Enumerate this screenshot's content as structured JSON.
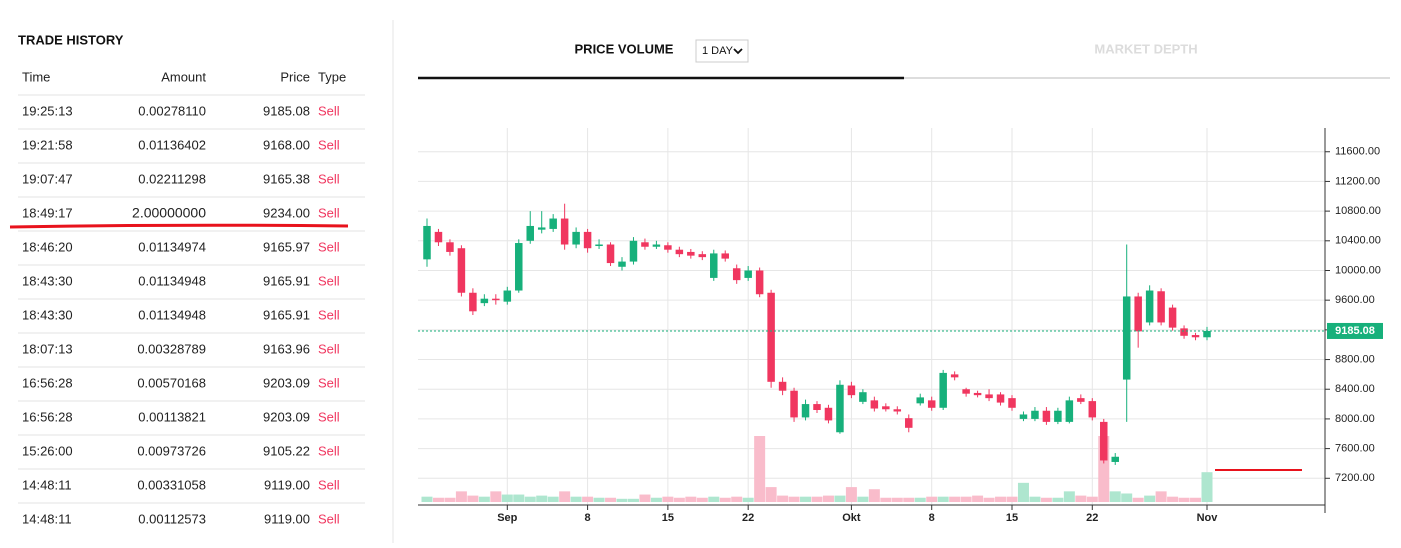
{
  "trade_history": {
    "title": "TRADE HISTORY",
    "columns": [
      "Time",
      "Amount",
      "Price",
      "Type"
    ],
    "rows": [
      [
        "19:25:13",
        "0.00278110",
        "9185.08",
        "Sell"
      ],
      [
        "19:21:58",
        "0.01136402",
        "9168.00",
        "Sell"
      ],
      [
        "19:07:47",
        "0.02211298",
        "9165.38",
        "Sell"
      ],
      [
        "18:49:17",
        "2.00000000",
        "9234.00",
        "Sell"
      ],
      [
        "18:46:20",
        "0.01134974",
        "9165.97",
        "Sell"
      ],
      [
        "18:43:30",
        "0.01134948",
        "9165.91",
        "Sell"
      ],
      [
        "18:43:30",
        "0.01134948",
        "9165.91",
        "Sell"
      ],
      [
        "18:07:13",
        "0.00328789",
        "9163.96",
        "Sell"
      ],
      [
        "16:56:28",
        "0.00570168",
        "9203.09",
        "Sell"
      ],
      [
        "16:56:28",
        "0.00113821",
        "9203.09",
        "Sell"
      ],
      [
        "15:26:00",
        "0.00973726",
        "9105.22",
        "Sell"
      ],
      [
        "14:48:11",
        "0.00331058",
        "9119.00",
        "Sell"
      ],
      [
        "14:48:11",
        "0.00112573",
        "9119.00",
        "Sell"
      ]
    ]
  },
  "tabs": {
    "price_volume": "PRICE VOLUME",
    "interval": "1 DAY",
    "market_depth": "MARKET DEPTH"
  },
  "chart_data": {
    "type": "candlestick",
    "categories": [
      null,
      null,
      null,
      null,
      null,
      null,
      null,
      "Sep",
      null,
      null,
      null,
      null,
      null,
      null,
      "8",
      null,
      null,
      null,
      null,
      null,
      null,
      "15",
      null,
      null,
      null,
      null,
      null,
      null,
      "22",
      null,
      null,
      null,
      null,
      null,
      null,
      null,
      null,
      "Okt",
      null,
      null,
      null,
      null,
      null,
      null,
      "8",
      null,
      null,
      null,
      null,
      null,
      null,
      "15",
      null,
      null,
      null,
      null,
      null,
      null,
      "22",
      null,
      null,
      null,
      null,
      null,
      null,
      null,
      null,
      null,
      "Nov"
    ],
    "open": [
      10150,
      10520,
      10380,
      10300,
      9700,
      9560,
      9620,
      9580,
      9730,
      10400,
      10550,
      10560,
      10700,
      10350,
      10520,
      10330,
      10350,
      10050,
      10120,
      10380,
      10320,
      10340,
      10280,
      10250,
      10220,
      9900,
      10230,
      10030,
      9900,
      10000,
      9700,
      8500,
      8380,
      8020,
      8200,
      8150,
      7820,
      8450,
      8230,
      8250,
      8170,
      8130,
      8010,
      8210,
      8250,
      8150,
      8600,
      8400,
      8350,
      8330,
      8330,
      8280,
      8000,
      8000,
      8110,
      7960,
      7960,
      8280,
      8240,
      7960,
      7420,
      8530,
      9650,
      9300,
      9720,
      9500,
      9220,
      9130,
      9100
    ],
    "high": [
      10700,
      10560,
      10420,
      10340,
      9760,
      9680,
      9680,
      9780,
      10420,
      10800,
      10800,
      10760,
      10900,
      10580,
      10560,
      10420,
      10380,
      10180,
      10450,
      10430,
      10400,
      10380,
      10320,
      10290,
      10260,
      10280,
      10270,
      10080,
      10060,
      10040,
      9740,
      8560,
      8420,
      8260,
      8240,
      8190,
      8520,
      8500,
      8400,
      8300,
      8210,
      8170,
      8060,
      8340,
      8300,
      8660,
      8640,
      8420,
      8380,
      8400,
      8360,
      8320,
      8100,
      8160,
      8160,
      8150,
      8300,
      8330,
      8280,
      8000,
      7540,
      10350,
      9700,
      9800,
      9760,
      9540,
      9260,
      9160,
      9240
    ],
    "low": [
      10050,
      10330,
      10200,
      9650,
      9400,
      9520,
      9540,
      9540,
      9700,
      10360,
      10500,
      10520,
      10280,
      10300,
      10240,
      10290,
      10060,
      10000,
      10080,
      10280,
      10290,
      10240,
      10180,
      10160,
      10140,
      9860,
      10120,
      9820,
      9860,
      9640,
      8420,
      8320,
      7960,
      7980,
      8080,
      7940,
      7800,
      8280,
      8200,
      8100,
      8100,
      8060,
      7820,
      8180,
      8110,
      8120,
      8520,
      8300,
      8290,
      8240,
      8180,
      8110,
      7970,
      7970,
      7920,
      7930,
      7940,
      8200,
      7980,
      7400,
      7380,
      7960,
      8960,
      9260,
      9260,
      9190,
      9080,
      9060,
      9060
    ],
    "close": [
      10600,
      10380,
      10250,
      9700,
      9450,
      9620,
      9600,
      9730,
      10370,
      10600,
      10580,
      10700,
      10350,
      10520,
      10300,
      10350,
      10100,
      10120,
      10400,
      10320,
      10350,
      10280,
      10220,
      10200,
      10180,
      10230,
      10160,
      9870,
      10000,
      9680,
      8500,
      8380,
      8020,
      8200,
      8120,
      7980,
      8460,
      8320,
      8360,
      8140,
      8130,
      8100,
      7880,
      8290,
      8150,
      8620,
      8560,
      8340,
      8320,
      8280,
      8220,
      8150,
      8060,
      8110,
      7960,
      8110,
      8250,
      8230,
      8020,
      7440,
      7490,
      9650,
      9180,
      9730,
      9300,
      9230,
      9120,
      9100,
      9185.08
    ],
    "volume": [
      5,
      4,
      4,
      10,
      6,
      5,
      10,
      7,
      7,
      5,
      6,
      5,
      10,
      5,
      5,
      4,
      4,
      3,
      3,
      7,
      4,
      5,
      4,
      5,
      4,
      5,
      4,
      5,
      4,
      62,
      14,
      6,
      5,
      5,
      5,
      6,
      6,
      14,
      5,
      12,
      4,
      4,
      4,
      4,
      5,
      5,
      5,
      5,
      6,
      4,
      5,
      5,
      18,
      5,
      4,
      4,
      10,
      6,
      5,
      62,
      10,
      8,
      4,
      6,
      10,
      5,
      4,
      4,
      28
    ],
    "up_color": "#17b07b",
    "down_color": "#f0365f",
    "up_volume_color": "#aee6cf",
    "down_volume_color": "#f9bccb",
    "ylim": [
      6840,
      11920
    ],
    "yticks": [
      {
        "value": 7200,
        "label": "7200.00"
      },
      {
        "value": 7600,
        "label": "7600.00"
      },
      {
        "value": 8000,
        "label": "8000.00"
      },
      {
        "value": 8400,
        "label": "8400.00"
      },
      {
        "value": 8800,
        "label": "8800.00"
      },
      {
        "value": 9200,
        "label": "9200.00"
      },
      {
        "value": 9600,
        "label": "9600.00"
      },
      {
        "value": 10000,
        "label": "10000.00"
      },
      {
        "value": 10400,
        "label": "10400.00"
      },
      {
        "value": 10800,
        "label": "10800.00"
      },
      {
        "value": 11200,
        "label": "11200.00"
      },
      {
        "value": 11600,
        "label": "11600.00"
      }
    ],
    "grid": true
  }
}
